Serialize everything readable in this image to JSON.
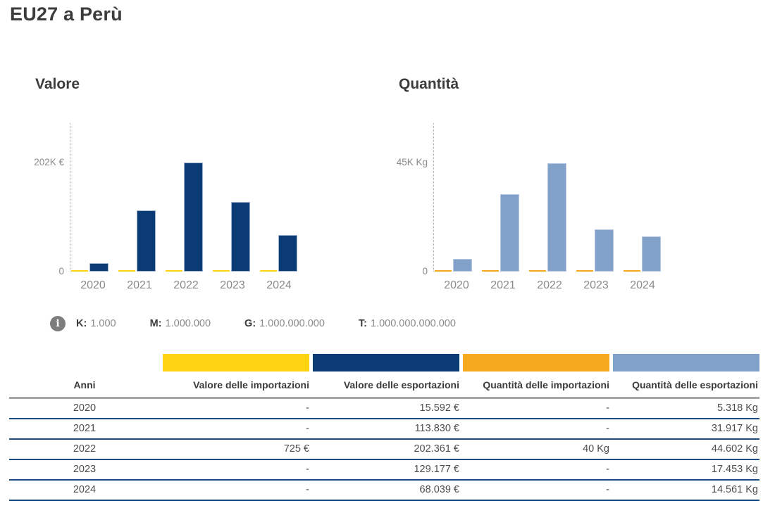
{
  "header": {
    "title": "EU27 a Perù"
  },
  "colors": {
    "import_value": "#FFD513",
    "export_value": "#0B3B74",
    "import_quantity": "#F5A91F",
    "export_quantity": "#81A1CA",
    "row_separator": "#1C4B7D",
    "header_separator": "#A6A6A6",
    "info_icon_bg": "#7D7D7D"
  },
  "chart_data": [
    {
      "type": "bar",
      "title": "Valore",
      "categories": [
        "2020",
        "2021",
        "2022",
        "2023",
        "2024"
      ],
      "series": [
        {
          "name": "Valore delle importazioni",
          "color": "#FFD513",
          "values": [
            null,
            null,
            725,
            null,
            null
          ]
        },
        {
          "name": "Valore delle esportazioni",
          "color": "#0B3B74",
          "values": [
            15592,
            113830,
            202361,
            129177,
            68039
          ]
        }
      ],
      "ylabel_top": "202K €",
      "ylabel_zero": "0",
      "ymax_at_label": 202000,
      "unit": "€",
      "grid": false,
      "legend_position": "none"
    },
    {
      "type": "bar",
      "title": "Quantità",
      "categories": [
        "2020",
        "2021",
        "2022",
        "2023",
        "2024"
      ],
      "series": [
        {
          "name": "Quantità delle importazioni",
          "color": "#F5A91F",
          "values": [
            null,
            null,
            40,
            null,
            null
          ]
        },
        {
          "name": "Quantità delle esportazioni",
          "color": "#81A1CA",
          "values": [
            5318,
            31917,
            44602,
            17453,
            14561
          ]
        }
      ],
      "ylabel_top": "45K Kg",
      "ylabel_zero": "0",
      "ymax_at_label": 45000,
      "unit": "Kg",
      "grid": false,
      "legend_position": "none"
    }
  ],
  "unit_legend": {
    "icon_glyph": "i",
    "items": [
      {
        "label": "K:",
        "value": "1.000"
      },
      {
        "label": "M:",
        "value": "1.000.000"
      },
      {
        "label": "G:",
        "value": "1.000.000.000"
      },
      {
        "label": "T:",
        "value": "1.000.000.000.000"
      }
    ]
  },
  "table": {
    "swatch_colors": [
      "#FFD513",
      "#0B3B74",
      "#F5A91F",
      "#81A1CA"
    ],
    "columns": [
      "Anni",
      "Valore delle importazioni",
      "Valore delle esportazioni",
      "Quantità delle importazioni",
      "Quantità delle esportazioni"
    ],
    "rows": [
      [
        "2020",
        "-",
        "15.592 €",
        "-",
        "5.318 Kg"
      ],
      [
        "2021",
        "-",
        "113.830 €",
        "-",
        "31.917 Kg"
      ],
      [
        "2022",
        "725 €",
        "202.361 €",
        "40 Kg",
        "44.602 Kg"
      ],
      [
        "2023",
        "-",
        "129.177 €",
        "-",
        "17.453 Kg"
      ],
      [
        "2024",
        "-",
        "68.039 €",
        "-",
        "14.561 Kg"
      ]
    ]
  }
}
